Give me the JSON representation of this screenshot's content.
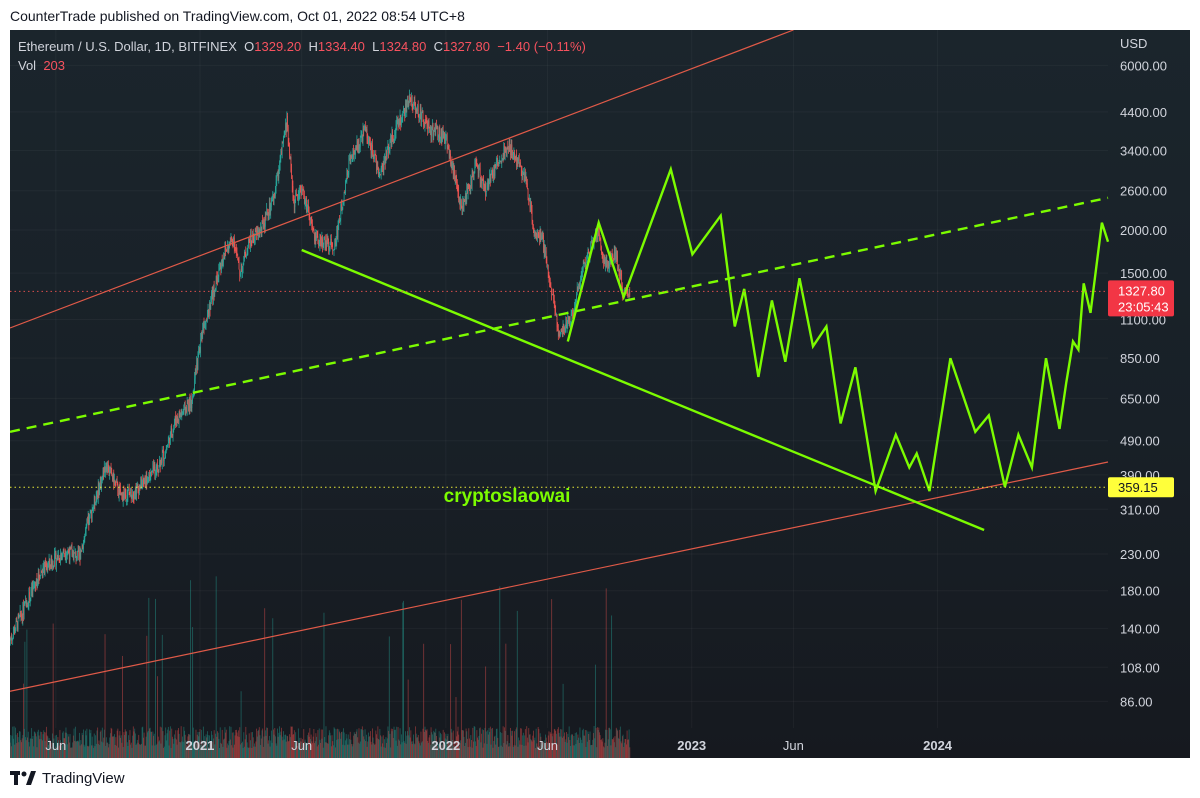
{
  "header": {
    "publisher_line": "CounterTrade published on TradingView.com, Oct 01, 2022 08:54 UTC+8"
  },
  "legend": {
    "symbol": "Ethereum / U.S. Dollar, 1D, BITFINEX",
    "open_label": "O",
    "open": "1329.20",
    "high_label": "H",
    "high": "1334.40",
    "low_label": "L",
    "low": "1324.80",
    "close_label": "C",
    "close": "1327.80",
    "change": "−1.40 (−0.11%)",
    "vol_label": "Vol",
    "vol": "203"
  },
  "watermark_text": "cryptoslaowai",
  "footer": {
    "brand": "TradingView"
  },
  "colors": {
    "background": "#16191f",
    "background_top": "#1a2128",
    "up": "#26a69a",
    "down": "#ef5350",
    "channel": "#e05a48",
    "projection": "#7cfc00",
    "price_line": "#ef5350",
    "level_line": "#ffff3a",
    "axis_text": "#d1d4dc"
  },
  "chart_data": {
    "type": "candlestick",
    "symbol": "Ethereum / U.S. Dollar, 1D, BITFINEX",
    "y_scale": "log",
    "ylim": [
      72,
      7600
    ],
    "xlim": [
      "2020-03-25",
      "2024-09-10"
    ],
    "y_axis_unit": "USD",
    "y_ticks": [
      6000,
      4400,
      3400,
      2600,
      2000,
      1500,
      1100,
      850,
      650,
      490,
      390,
      310,
      230,
      180,
      140,
      108,
      86
    ],
    "y_tick_labels": [
      "6000.00",
      "4400.00",
      "3400.00",
      "2600.00",
      "2000.00",
      "1500.00",
      "1100.00",
      "850.00",
      "650.00",
      "490.00",
      "390.00",
      "310.00",
      "230.00",
      "180.00",
      "140.00",
      "108.00",
      "86.00"
    ],
    "x_ticks": [
      {
        "date": "2020-06-01",
        "label": "Jun",
        "bold": false
      },
      {
        "date": "2021-01-01",
        "label": "2021",
        "bold": true
      },
      {
        "date": "2021-06-01",
        "label": "Jun",
        "bold": false
      },
      {
        "date": "2022-01-01",
        "label": "2022",
        "bold": true
      },
      {
        "date": "2022-06-01",
        "label": "Jun",
        "bold": false
      },
      {
        "date": "2023-01-01",
        "label": "2023",
        "bold": true
      },
      {
        "date": "2023-06-01",
        "label": "Jun",
        "bold": false
      },
      {
        "date": "2024-01-01",
        "label": "2024",
        "bold": true
      }
    ],
    "last_price": {
      "value": 1327.8,
      "label": "1327.80",
      "countdown": "23:05:43"
    },
    "level_label": {
      "value": 359.15,
      "label": "359.15"
    },
    "price_path": [
      [
        "2020-03-25",
        130
      ],
      [
        "2020-04-15",
        160
      ],
      [
        "2020-05-10",
        205
      ],
      [
        "2020-06-15",
        235
      ],
      [
        "2020-07-05",
        225
      ],
      [
        "2020-07-25",
        310
      ],
      [
        "2020-08-15",
        420
      ],
      [
        "2020-09-05",
        340
      ],
      [
        "2020-09-25",
        350
      ],
      [
        "2020-10-20",
        390
      ],
      [
        "2020-11-10",
        450
      ],
      [
        "2020-11-25",
        560
      ],
      [
        "2020-12-20",
        640
      ],
      [
        "2021-01-05",
        1050
      ],
      [
        "2021-01-20",
        1300
      ],
      [
        "2021-02-05",
        1700
      ],
      [
        "2021-02-20",
        1900
      ],
      [
        "2021-03-01",
        1500
      ],
      [
        "2021-03-15",
        1850
      ],
      [
        "2021-04-01",
        2000
      ],
      [
        "2021-04-20",
        2450
      ],
      [
        "2021-05-10",
        4150
      ],
      [
        "2021-05-20",
        2400
      ],
      [
        "2021-06-01",
        2650
      ],
      [
        "2021-06-20",
        1900
      ],
      [
        "2021-07-20",
        1800
      ],
      [
        "2021-08-10",
        3100
      ],
      [
        "2021-09-03",
        3900
      ],
      [
        "2021-09-25",
        2900
      ],
      [
        "2021-10-15",
        3800
      ],
      [
        "2021-11-10",
        4800
      ],
      [
        "2021-11-25",
        4300
      ],
      [
        "2021-12-10",
        3900
      ],
      [
        "2022-01-01",
        3700
      ],
      [
        "2022-01-24",
        2300
      ],
      [
        "2022-02-15",
        3100
      ],
      [
        "2022-02-28",
        2600
      ],
      [
        "2022-03-25",
        3300
      ],
      [
        "2022-04-05",
        3500
      ],
      [
        "2022-04-30",
        2800
      ],
      [
        "2022-05-12",
        2000
      ],
      [
        "2022-05-25",
        1850
      ],
      [
        "2022-06-18",
        1000
      ],
      [
        "2022-07-05",
        1100
      ],
      [
        "2022-07-25",
        1600
      ],
      [
        "2022-08-14",
        1950
      ],
      [
        "2022-08-25",
        1600
      ],
      [
        "2022-09-10",
        1700
      ],
      [
        "2022-09-22",
        1300
      ],
      [
        "2022-10-01",
        1327.8
      ]
    ],
    "volume_max": 1,
    "overlays": [
      {
        "name": "channel-upper",
        "kind": "line",
        "color": "channel",
        "dashed": false,
        "points": [
          [
            "2020-03-25",
            1040
          ],
          [
            "2023-06-01",
            7600
          ]
        ]
      },
      {
        "name": "channel-lower",
        "kind": "line",
        "color": "channel",
        "dashed": false,
        "points": [
          [
            "2020-03-25",
            92
          ],
          [
            "2024-09-10",
            425
          ]
        ]
      },
      {
        "name": "channel-midline",
        "kind": "line",
        "color": "projection",
        "dashed": true,
        "points": [
          [
            "2020-03-25",
            520
          ],
          [
            "2024-09-10",
            2480
          ]
        ]
      },
      {
        "name": "support-diagonal",
        "kind": "line",
        "color": "projection",
        "dashed": false,
        "points": [
          [
            "2021-06-01",
            1750
          ],
          [
            "2024-03-10",
            270
          ]
        ]
      },
      {
        "name": "projection-path",
        "kind": "polyline",
        "color": "projection",
        "dashed": false,
        "points": [
          [
            "2022-07-01",
            950
          ],
          [
            "2022-08-16",
            2100
          ],
          [
            "2022-09-22",
            1280
          ],
          [
            "2022-12-01",
            3000
          ],
          [
            "2023-01-02",
            1700
          ],
          [
            "2023-02-13",
            2200
          ],
          [
            "2023-03-06",
            1050
          ],
          [
            "2023-03-20",
            1350
          ],
          [
            "2023-04-10",
            750
          ],
          [
            "2023-04-30",
            1250
          ],
          [
            "2023-05-20",
            830
          ],
          [
            "2023-06-10",
            1450
          ],
          [
            "2023-06-30",
            920
          ],
          [
            "2023-07-20",
            1050
          ],
          [
            "2023-08-10",
            550
          ],
          [
            "2023-09-01",
            800
          ],
          [
            "2023-10-01",
            350
          ],
          [
            "2023-10-31",
            510
          ],
          [
            "2023-11-20",
            410
          ],
          [
            "2023-12-01",
            450
          ],
          [
            "2023-12-20",
            350
          ],
          [
            "2024-01-20",
            850
          ],
          [
            "2024-02-26",
            520
          ],
          [
            "2024-03-17",
            580
          ],
          [
            "2024-04-10",
            360
          ],
          [
            "2024-04-30",
            510
          ],
          [
            "2024-05-20",
            410
          ],
          [
            "2024-06-10",
            850
          ],
          [
            "2024-06-30",
            530
          ],
          [
            "2024-07-10",
            720
          ],
          [
            "2024-07-20",
            950
          ],
          [
            "2024-07-28",
            900
          ],
          [
            "2024-08-05",
            1400
          ],
          [
            "2024-08-15",
            1150
          ],
          [
            "2024-09-01",
            2100
          ],
          [
            "2024-09-10",
            1850
          ]
        ]
      },
      {
        "name": "level-line",
        "kind": "hline",
        "color": "level_line",
        "dotted": true,
        "value": 359.15
      },
      {
        "name": "last-price-line",
        "kind": "hline",
        "color": "price_line",
        "dotted": true,
        "value": 1327.8
      }
    ]
  }
}
